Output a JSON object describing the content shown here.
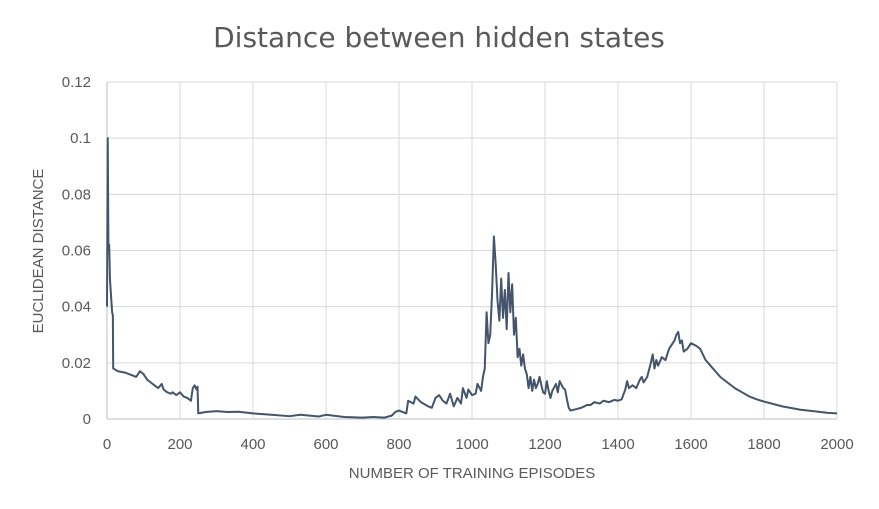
{
  "chart_data": {
    "type": "line",
    "title": "Distance between hidden states",
    "xlabel": "NUMBER OF TRAINING EPISODES",
    "ylabel": "EUCLIDEAN DISTANCE",
    "xlim": [
      0,
      2000
    ],
    "ylim": [
      0,
      0.12
    ],
    "x_ticks": [
      "0",
      "200",
      "400",
      "600",
      "800",
      "1000",
      "1200",
      "1400",
      "1600",
      "1800",
      "2000"
    ],
    "y_ticks": [
      "0",
      "0.02",
      "0.04",
      "0.06",
      "0.08",
      "0.1",
      "0.12"
    ],
    "x_tick_values": [
      0,
      200,
      400,
      600,
      800,
      1000,
      1200,
      1400,
      1600,
      1800,
      2000
    ],
    "y_tick_values": [
      0,
      0.02,
      0.04,
      0.06,
      0.08,
      0.1,
      0.12
    ],
    "grid": true,
    "line_color": "#44546a",
    "series": [
      {
        "points": [
          [
            0,
            0.04
          ],
          [
            2,
            0.1
          ],
          [
            4,
            0.06
          ],
          [
            6,
            0.062
          ],
          [
            8,
            0.05
          ],
          [
            10,
            0.046
          ],
          [
            12,
            0.042
          ],
          [
            14,
            0.038
          ],
          [
            16,
            0.037
          ],
          [
            17,
            0.018
          ],
          [
            30,
            0.017
          ],
          [
            50,
            0.0165
          ],
          [
            70,
            0.0155
          ],
          [
            80,
            0.015
          ],
          [
            90,
            0.017
          ],
          [
            100,
            0.016
          ],
          [
            110,
            0.014
          ],
          [
            120,
            0.013
          ],
          [
            130,
            0.012
          ],
          [
            140,
            0.011
          ],
          [
            150,
            0.0125
          ],
          [
            155,
            0.0105
          ],
          [
            165,
            0.0095
          ],
          [
            175,
            0.009
          ],
          [
            180,
            0.0095
          ],
          [
            190,
            0.0085
          ],
          [
            200,
            0.0095
          ],
          [
            210,
            0.008
          ],
          [
            220,
            0.0075
          ],
          [
            230,
            0.0065
          ],
          [
            235,
            0.011
          ],
          [
            240,
            0.012
          ],
          [
            245,
            0.0105
          ],
          [
            248,
            0.0115
          ],
          [
            250,
            0.002
          ],
          [
            270,
            0.0025
          ],
          [
            300,
            0.0028
          ],
          [
            330,
            0.0025
          ],
          [
            360,
            0.0026
          ],
          [
            400,
            0.002
          ],
          [
            450,
            0.0015
          ],
          [
            500,
            0.001
          ],
          [
            530,
            0.0015
          ],
          [
            580,
            0.0009
          ],
          [
            600,
            0.0015
          ],
          [
            650,
            0.0007
          ],
          [
            700,
            0.0005
          ],
          [
            730,
            0.0007
          ],
          [
            760,
            0.0005
          ],
          [
            780,
            0.0012
          ],
          [
            790,
            0.0025
          ],
          [
            800,
            0.003
          ],
          [
            820,
            0.002
          ],
          [
            825,
            0.0065
          ],
          [
            840,
            0.0055
          ],
          [
            845,
            0.008
          ],
          [
            860,
            0.006
          ],
          [
            880,
            0.0045
          ],
          [
            890,
            0.004
          ],
          [
            900,
            0.0075
          ],
          [
            910,
            0.0085
          ],
          [
            920,
            0.0065
          ],
          [
            930,
            0.0055
          ],
          [
            940,
            0.009
          ],
          [
            950,
            0.0045
          ],
          [
            960,
            0.0075
          ],
          [
            970,
            0.0055
          ],
          [
            975,
            0.011
          ],
          [
            985,
            0.0075
          ],
          [
            990,
            0.0105
          ],
          [
            1000,
            0.0085
          ],
          [
            1010,
            0.009
          ],
          [
            1015,
            0.0125
          ],
          [
            1025,
            0.01
          ],
          [
            1030,
            0.015
          ],
          [
            1035,
            0.018
          ],
          [
            1040,
            0.038
          ],
          [
            1045,
            0.027
          ],
          [
            1050,
            0.03
          ],
          [
            1055,
            0.045
          ],
          [
            1060,
            0.065
          ],
          [
            1065,
            0.055
          ],
          [
            1070,
            0.042
          ],
          [
            1075,
            0.035
          ],
          [
            1080,
            0.05
          ],
          [
            1085,
            0.036
          ],
          [
            1090,
            0.046
          ],
          [
            1095,
            0.032
          ],
          [
            1100,
            0.052
          ],
          [
            1105,
            0.038
          ],
          [
            1110,
            0.048
          ],
          [
            1115,
            0.03
          ],
          [
            1120,
            0.036
          ],
          [
            1125,
            0.022
          ],
          [
            1130,
            0.025
          ],
          [
            1135,
            0.019
          ],
          [
            1140,
            0.023
          ],
          [
            1145,
            0.018
          ],
          [
            1150,
            0.016
          ],
          [
            1155,
            0.011
          ],
          [
            1160,
            0.015
          ],
          [
            1165,
            0.01
          ],
          [
            1170,
            0.014
          ],
          [
            1175,
            0.011
          ],
          [
            1180,
            0.0125
          ],
          [
            1185,
            0.015
          ],
          [
            1190,
            0.012
          ],
          [
            1195,
            0.0095
          ],
          [
            1200,
            0.009
          ],
          [
            1205,
            0.0135
          ],
          [
            1210,
            0.01
          ],
          [
            1215,
            0.0075
          ],
          [
            1220,
            0.01
          ],
          [
            1230,
            0.0125
          ],
          [
            1235,
            0.0095
          ],
          [
            1240,
            0.0135
          ],
          [
            1250,
            0.011
          ],
          [
            1255,
            0.0105
          ],
          [
            1260,
            0.007
          ],
          [
            1265,
            0.004
          ],
          [
            1270,
            0.003
          ],
          [
            1285,
            0.0035
          ],
          [
            1300,
            0.004
          ],
          [
            1315,
            0.005
          ],
          [
            1325,
            0.005
          ],
          [
            1335,
            0.006
          ],
          [
            1350,
            0.0055
          ],
          [
            1360,
            0.0065
          ],
          [
            1375,
            0.006
          ],
          [
            1390,
            0.0068
          ],
          [
            1400,
            0.0065
          ],
          [
            1410,
            0.007
          ],
          [
            1420,
            0.0105
          ],
          [
            1425,
            0.0135
          ],
          [
            1430,
            0.011
          ],
          [
            1440,
            0.012
          ],
          [
            1450,
            0.011
          ],
          [
            1460,
            0.014
          ],
          [
            1465,
            0.015
          ],
          [
            1470,
            0.013
          ],
          [
            1480,
            0.015
          ],
          [
            1490,
            0.02
          ],
          [
            1495,
            0.023
          ],
          [
            1500,
            0.018
          ],
          [
            1505,
            0.021
          ],
          [
            1510,
            0.019
          ],
          [
            1520,
            0.022
          ],
          [
            1530,
            0.021
          ],
          [
            1540,
            0.025
          ],
          [
            1550,
            0.027
          ],
          [
            1555,
            0.028
          ],
          [
            1560,
            0.03
          ],
          [
            1565,
            0.031
          ],
          [
            1570,
            0.027
          ],
          [
            1575,
            0.028
          ],
          [
            1580,
            0.024
          ],
          [
            1590,
            0.025
          ],
          [
            1600,
            0.027
          ],
          [
            1615,
            0.026
          ],
          [
            1625,
            0.025
          ],
          [
            1640,
            0.021
          ],
          [
            1660,
            0.018
          ],
          [
            1680,
            0.015
          ],
          [
            1700,
            0.013
          ],
          [
            1720,
            0.011
          ],
          [
            1740,
            0.0095
          ],
          [
            1760,
            0.008
          ],
          [
            1780,
            0.007
          ],
          [
            1800,
            0.0062
          ],
          [
            1850,
            0.0045
          ],
          [
            1900,
            0.0033
          ],
          [
            1950,
            0.0026
          ],
          [
            1975,
            0.0022
          ],
          [
            2000,
            0.002
          ]
        ]
      }
    ]
  }
}
